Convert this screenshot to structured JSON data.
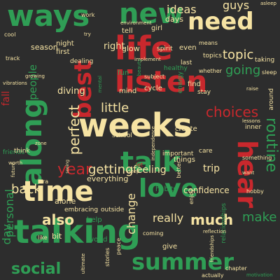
{
  "palette": {
    "background": "#2d2d2d",
    "green": "#2f9e55",
    "red": "#c8282d",
    "cream": "#f6e3a3"
  },
  "words": {
    "talking": "talking",
    "weeks": "weeks",
    "life": "life",
    "listen": "listen",
    "need": "need",
    "ways": "ways",
    "new": "new",
    "along": "along",
    "best": "best",
    "hear": "hear",
    "talk": "talk",
    "time": "time",
    "love": "love",
    "summer": "summer",
    "social": "social",
    "also": "also",
    "much": "much",
    "year": "year",
    "back": "back",
    "perfect": "perfect",
    "little": "little",
    "choices": "choices",
    "going": "going",
    "topic": "topic",
    "ideas": "ideas",
    "guys": "guys",
    "routine": "routine",
    "getting": "getting",
    "confidence": "confidence",
    "make": "make",
    "change": "change",
    "feeling": "feeling",
    "really": "really",
    "people": "people",
    "personal": "personal",
    "trip": "trip",
    "diving": "diving",
    "right": "right",
    "season": "season",
    "fall": "fall",
    "glow": "glow",
    "day": "day",
    "alone": "alone",
    "everything": "everything",
    "days": "days",
    "even": "even",
    "things": "things",
    "create": "create",
    "bit": "bit",
    "give": "give",
    "first": "first",
    "night": "night",
    "girl": "girl",
    "spirit": "spirit",
    "find": "find",
    "stay": "stay",
    "help": "help",
    "habits": "habits",
    "embracing": "embracing",
    "outside": "outside",
    "world": "world",
    "school": "school",
    "important": "important",
    "relationships": "relationships",
    "topics": "topics",
    "taking": "taking",
    "tell": "tell",
    "dealing": "dealing",
    "last": "last",
    "cycle": "cycle",
    "mind": "mind",
    "fun": "fun",
    "care": "care",
    "inner": "inner",
    "hobby": "hobby",
    "reflection": "reflection",
    "coming": "coming",
    "lessons": "lessons",
    "something": "something",
    "friends": "friends",
    "stories": "stories",
    "motivation": "motivation",
    "asleep": "asleep",
    "environment": "environment",
    "cool": "cool",
    "track": "track",
    "think": "think",
    "zone": "zone",
    "deep": "deep",
    "era": "era",
    "like": "like",
    "means": "means",
    "sleep": "sleep",
    "healthy": "healthy",
    "energy": "energy",
    "whether": "whether",
    "let": "let",
    "vibrations": "vibrations",
    "growing": "growing",
    "subject": "subject",
    "mental": "mental",
    "future": "future",
    "around": "around",
    "try": "try",
    "work": "work",
    "chapter": "chapter",
    "actually": "actually",
    "enjoy": "enjoy",
    "better": "better",
    "peace": "peace",
    "seeing": "seeing",
    "raise": "raise",
    "want": "want",
    "friendships": "friendships",
    "independence": "independence",
    "ultimate": "ultimate",
    "implement": "implement",
    "beauty": "beauty",
    "worth": "worth"
  }
}
